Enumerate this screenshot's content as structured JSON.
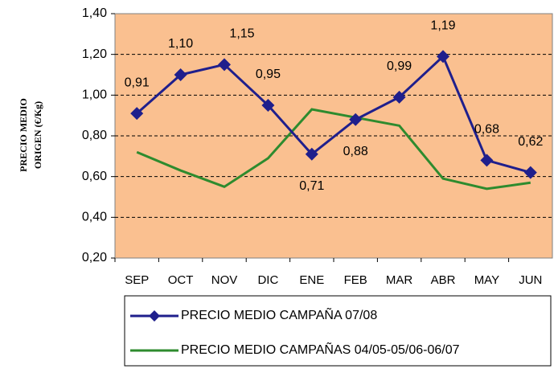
{
  "chart_data": {
    "type": "line",
    "ylabel": [
      "PRECIO MEDIO",
      "ORIGEN (€/Kg)"
    ],
    "categories": [
      "SEP",
      "OCT",
      "NOV",
      "DIC",
      "ENE",
      "FEB",
      "MAR",
      "ABR",
      "MAY",
      "JUN"
    ],
    "series": [
      {
        "name": "PRECIO MEDIO CAMPAÑA 07/08",
        "color": "#1f1f8c",
        "marker": "diamond",
        "values": [
          0.91,
          1.1,
          1.15,
          0.95,
          0.71,
          0.88,
          0.99,
          1.19,
          0.68,
          0.62
        ],
        "value_labels": [
          "0,91",
          "1,10",
          "1,15",
          "0,95",
          "0,71",
          "0,88",
          "0,99",
          "1,19",
          "0,68",
          "0,62"
        ]
      },
      {
        "name": "PRECIO MEDIO CAMPAÑAS 04/05-05/06-06/07",
        "color": "#2e8b2e",
        "values": [
          0.72,
          0.63,
          0.55,
          0.69,
          0.93,
          0.89,
          0.85,
          0.59,
          0.54,
          0.57
        ]
      }
    ],
    "ylim": [
      0.2,
      1.4
    ],
    "yticks": [
      {
        "value": 0.2,
        "label": "0,20"
      },
      {
        "value": 0.4,
        "label": "0,40"
      },
      {
        "value": 0.6,
        "label": "0,60"
      },
      {
        "value": 0.8,
        "label": "0,80"
      },
      {
        "value": 1.0,
        "label": "1,00"
      },
      {
        "value": 1.2,
        "label": "1,20"
      },
      {
        "value": 1.4,
        "label": "1,40"
      }
    ],
    "grid": true,
    "plot_background": "#fac090",
    "legend": "bottom"
  }
}
